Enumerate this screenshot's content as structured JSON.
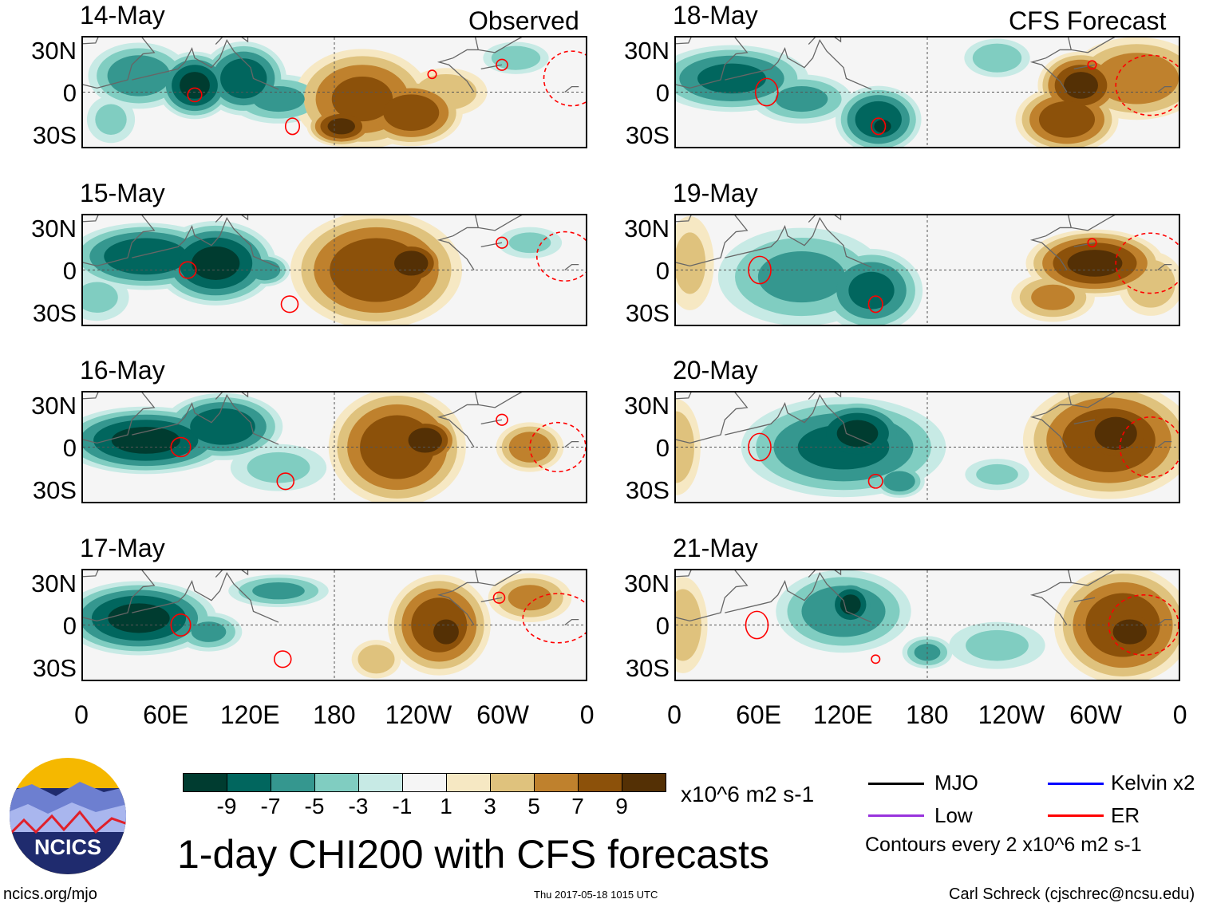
{
  "labels": {
    "observed": "Observed",
    "forecast": "CFS Forecast"
  },
  "panels": [
    {
      "date": "14-May"
    },
    {
      "date": "15-May"
    },
    {
      "date": "16-May"
    },
    {
      "date": "17-May"
    },
    {
      "date": "18-May"
    },
    {
      "date": "19-May"
    },
    {
      "date": "20-May"
    },
    {
      "date": "21-May"
    }
  ],
  "lat_ticks": [
    "30N",
    "0",
    "30S"
  ],
  "lon_ticks": [
    "0",
    "60E",
    "120E",
    "180",
    "120W",
    "60W",
    "0"
  ],
  "colorbar": {
    "colors": [
      "#003c30",
      "#01665e",
      "#35978f",
      "#80cdc1",
      "#c7eae5",
      "#f5f5f5",
      "#f6e8c3",
      "#dfc27d",
      "#bf812d",
      "#8c510a",
      "#543005"
    ],
    "ticks": [
      "-9",
      "-7",
      "-5",
      "-3",
      "-1",
      "1",
      "3",
      "5",
      "7",
      "9"
    ],
    "units": "x10^6 m2 s-1"
  },
  "title": "1-day CHI200 with CFS forecasts",
  "legend": {
    "mjo": "MJO",
    "kelvin": "Kelvin x2",
    "low": "Low",
    "er": "ER",
    "contours": "Contours every 2 x10^6 m2 s-1",
    "colors": {
      "mjo": "#000000",
      "kelvin": "#0000ff",
      "low": "#9933dd",
      "er": "#ff0000"
    }
  },
  "logo": {
    "text": "NCICS"
  },
  "footer": {
    "url": "ncics.org/mjo",
    "timestamp": "Thu 2017-05-18 1015 UTC",
    "credit": "Carl Schreck (cjschrec@ncsu.edu)"
  }
}
